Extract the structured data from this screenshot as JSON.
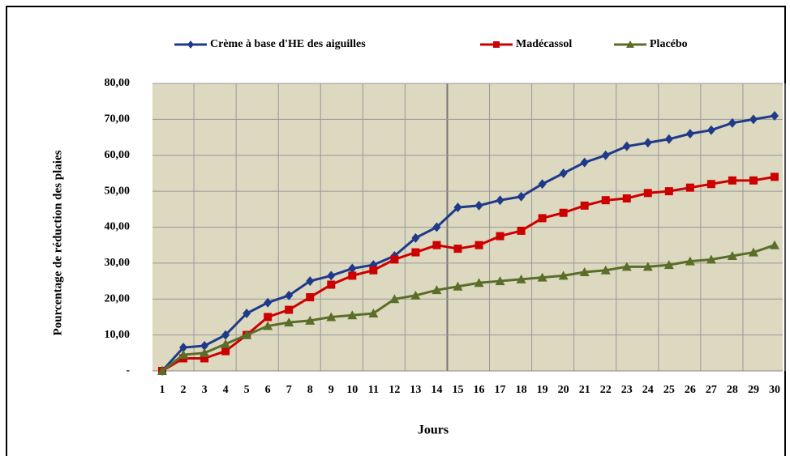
{
  "chart_data": {
    "type": "line",
    "xlabel": "Jours",
    "ylabel": "Pourcentage de réduction des plaies",
    "categories": [
      "1",
      "2",
      "3",
      "4",
      "5",
      "6",
      "7",
      "8",
      "9",
      "10",
      "11",
      "12",
      "13",
      "14",
      "15",
      "16",
      "17",
      "18",
      "19",
      "20",
      "21",
      "22",
      "23",
      "24",
      "25",
      "26",
      "27",
      "28",
      "29",
      "30"
    ],
    "series": [
      {
        "name": "Crème à base d'HE des aiguilles",
        "color": "#1f3a8a",
        "marker": "diamond",
        "values": [
          0,
          6.5,
          7,
          10,
          16,
          19,
          21,
          25,
          26.5,
          28.5,
          29.5,
          32,
          37,
          40,
          45.5,
          46,
          47.5,
          48.5,
          52,
          55,
          58,
          60,
          62.5,
          63.5,
          64.5,
          66,
          67,
          69,
          70,
          71
        ]
      },
      {
        "name": "Madécassol",
        "color": "#cc0000",
        "marker": "square",
        "values": [
          0,
          3.5,
          3.5,
          5.5,
          10,
          15,
          17,
          20.5,
          24,
          26.5,
          28,
          31,
          33,
          35,
          34,
          35,
          37.5,
          39,
          42.5,
          44,
          46,
          47.5,
          48,
          49.5,
          50,
          51,
          52,
          53,
          53,
          54
        ]
      },
      {
        "name": "Placébo",
        "color": "#5a6e2a",
        "marker": "triangle",
        "values": [
          0,
          4.5,
          5,
          7.5,
          10,
          12.5,
          13.5,
          14,
          15,
          15.5,
          16,
          20,
          21,
          22.5,
          23.5,
          24.5,
          25,
          25.5,
          26,
          26.5,
          27.5,
          28,
          29,
          29,
          29.5,
          30.5,
          31,
          32,
          33,
          35
        ]
      }
    ],
    "ylim": [
      0,
      80
    ],
    "yticks": [
      {
        "value": 0,
        "label": "-"
      },
      {
        "value": 10,
        "label": "10,00"
      },
      {
        "value": 20,
        "label": "20,00"
      },
      {
        "value": 30,
        "label": "30,00"
      },
      {
        "value": 40,
        "label": "40,00"
      },
      {
        "value": 50,
        "label": "50,00"
      },
      {
        "value": 60,
        "label": "60,00"
      },
      {
        "value": 70,
        "label": "70,00"
      },
      {
        "value": 80,
        "label": "80,00"
      }
    ],
    "grid": true,
    "legend": "top"
  }
}
